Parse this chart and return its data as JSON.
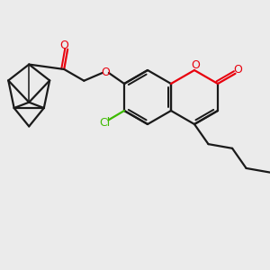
{
  "background_color": "#ebebeb",
  "bond_color": "#1a1a1a",
  "o_color": "#e8000d",
  "cl_color": "#3dba00",
  "lw": 1.6,
  "figsize": [
    3.0,
    3.0
  ],
  "dpi": 100,
  "xlim": [
    0.0,
    10.0
  ],
  "ylim": [
    0.0,
    10.0
  ]
}
